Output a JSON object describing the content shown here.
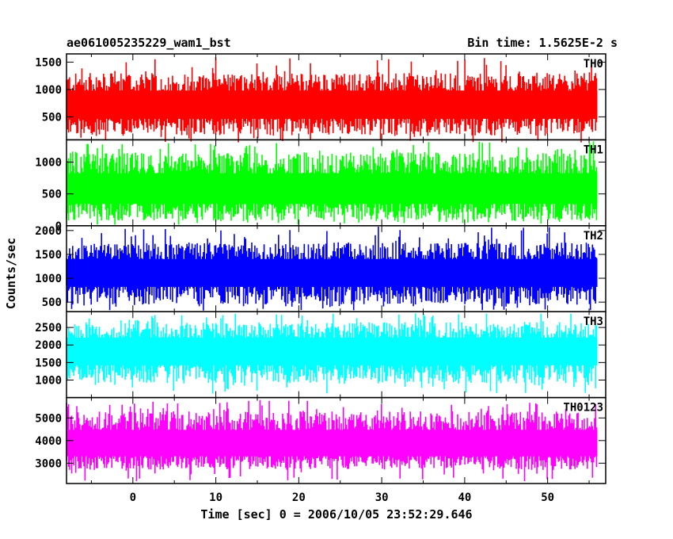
{
  "header": {
    "title": "ae061005235229_wam1_bst",
    "bin_time": "Bin time: 1.5625E-2 s"
  },
  "axes": {
    "ylabel": "Counts/sec",
    "xlabel": "Time [sec] 0 = 2006/10/05 23:52:29.646"
  },
  "chart_data": {
    "type": "line",
    "xlim": [
      -8,
      57
    ],
    "x_ticks": [
      0,
      10,
      20,
      30,
      40,
      50
    ],
    "x_data_range": [
      -8,
      56
    ],
    "bin_time": 0.015625,
    "grid": false,
    "panels": [
      {
        "label": "TH0",
        "color": "#ff0000",
        "ylim": [
          80,
          1650
        ],
        "y_ticks": [
          500,
          1000,
          1500
        ],
        "mean": 720,
        "typical_min": 150,
        "typical_max": 1300,
        "peak_min": 30,
        "peak_max": 1600
      },
      {
        "label": "TH1",
        "color": "#00ff00",
        "ylim": [
          0,
          1350
        ],
        "y_ticks": [
          0,
          500,
          1000
        ],
        "mean": 560,
        "typical_min": 80,
        "typical_max": 1150,
        "peak_min": 10,
        "peak_max": 1330
      },
      {
        "label": "TH2",
        "color": "#0000ff",
        "ylim": [
          300,
          2100
        ],
        "y_ticks": [
          500,
          1000,
          1500,
          2000
        ],
        "mean": 1120,
        "typical_min": 450,
        "typical_max": 1750,
        "peak_min": 320,
        "peak_max": 2080
      },
      {
        "label": "TH3",
        "color": "#00ffff",
        "ylim": [
          500,
          2950
        ],
        "y_ticks": [
          1000,
          1500,
          2000,
          2500
        ],
        "mean": 1850,
        "typical_min": 900,
        "typical_max": 2650,
        "peak_min": 600,
        "peak_max": 2900
      },
      {
        "label": "TH0123",
        "color": "#ff00ff",
        "ylim": [
          2100,
          5900
        ],
        "y_ticks": [
          3000,
          4000,
          5000
        ],
        "mean": 3800,
        "typical_min": 2700,
        "typical_max": 5300,
        "peak_min": 2200,
        "peak_max": 5800
      }
    ]
  }
}
